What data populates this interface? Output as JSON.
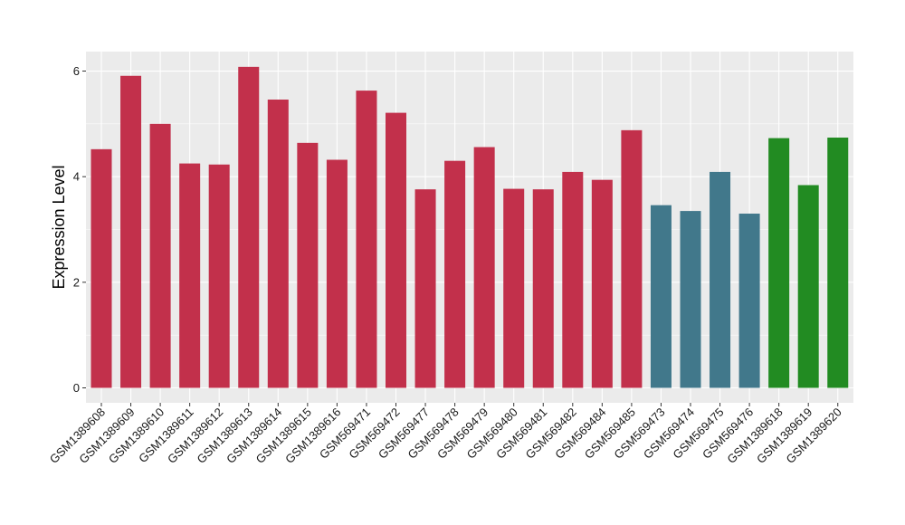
{
  "colors": {
    "panel_background": "#EBEBEB",
    "grid_major": "#FFFFFF",
    "tick": "#333333"
  },
  "chart_data": {
    "type": "bar",
    "title": "",
    "xlabel": "",
    "ylabel": "Expression Level",
    "ylim": [
      0,
      6.3
    ],
    "yticks": [
      0,
      2,
      4,
      6
    ],
    "grid": true,
    "legend": "none",
    "categories": [
      "GSM1389608",
      "GSM1389609",
      "GSM1389610",
      "GSM1389611",
      "GSM1389612",
      "GSM1389613",
      "GSM1389614",
      "GSM1389615",
      "GSM1389616",
      "GSM569471",
      "GSM569472",
      "GSM569477",
      "GSM569478",
      "GSM569479",
      "GSM569480",
      "GSM569481",
      "GSM569482",
      "GSM569484",
      "GSM569485",
      "GSM569473",
      "GSM569474",
      "GSM569475",
      "GSM569476",
      "GSM1389618",
      "GSM1389619",
      "GSM1389620"
    ],
    "values": [
      4.52,
      5.91,
      5.0,
      4.25,
      4.23,
      6.08,
      5.46,
      4.64,
      4.32,
      5.63,
      5.21,
      3.76,
      4.3,
      4.56,
      3.77,
      3.76,
      4.09,
      3.94,
      4.88,
      3.46,
      3.35,
      4.09,
      3.3,
      4.73,
      3.84,
      4.74
    ],
    "bar_colors": [
      "#C2304B",
      "#C2304B",
      "#C2304B",
      "#C2304B",
      "#C2304B",
      "#C2304B",
      "#C2304B",
      "#C2304B",
      "#C2304B",
      "#C2304B",
      "#C2304B",
      "#C2304B",
      "#C2304B",
      "#C2304B",
      "#C2304B",
      "#C2304B",
      "#C2304B",
      "#C2304B",
      "#C2304B",
      "#41788B",
      "#41788B",
      "#41788B",
      "#41788B",
      "#228B22",
      "#228B22",
      "#228B22"
    ]
  }
}
